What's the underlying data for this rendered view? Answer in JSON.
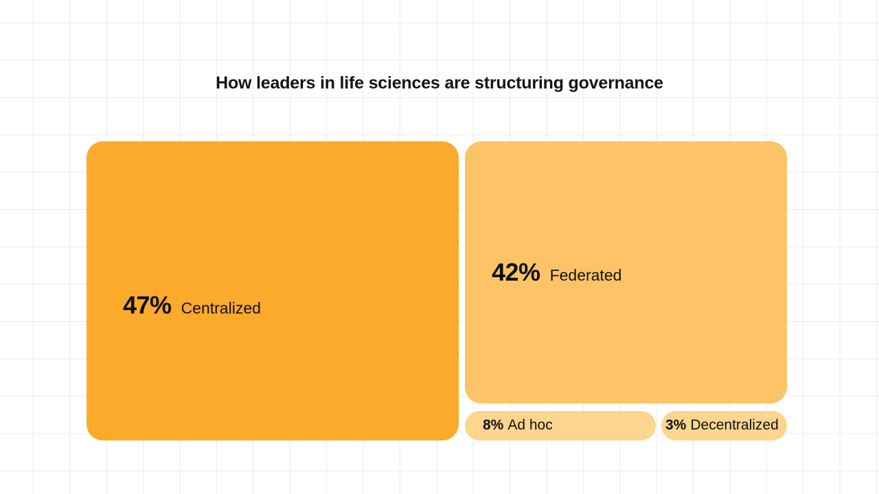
{
  "chart_data": {
    "type": "treemap",
    "title": "How leaders in life sciences are structuring governance",
    "unit": "%",
    "segments": [
      {
        "label": "Centralized",
        "value": 47,
        "display": "47%",
        "color": "#FBAA2B"
      },
      {
        "label": "Federated",
        "value": 42,
        "display": "42%",
        "color": "#FCC466"
      },
      {
        "label": "Ad hoc",
        "value": 8,
        "display": "8%",
        "color": "#FCD58E"
      },
      {
        "label": "Decentralized",
        "value": 3,
        "display": "3%",
        "color": "#FCD58E"
      }
    ]
  }
}
